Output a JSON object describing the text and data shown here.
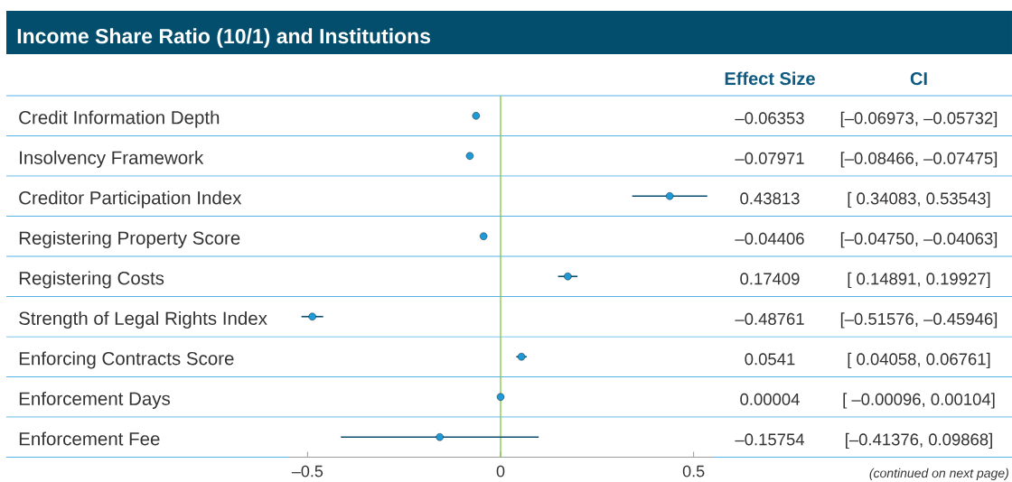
{
  "chart_data": {
    "type": "scatter",
    "orientation": "horizontal",
    "title": "Income Share Ratio (10/1) and Institutions",
    "categories": [
      "Credit Information Depth",
      "Insolvency Framework",
      "Creditor Participation Index",
      "Registering Property Score",
      "Registering Costs",
      "Strength of Legal Rights Index",
      "Enforcing Contracts Score",
      "Enforcement Days",
      "Enforcement Fee"
    ],
    "values": [
      -0.06353,
      -0.07971,
      0.43813,
      -0.04406,
      0.17409,
      -0.48761,
      0.0541,
      4e-05,
      -0.15754
    ],
    "errors": [
      null,
      null,
      [
        0.34083,
        0.53543
      ],
      null,
      [
        0.14891,
        0.19927
      ],
      [
        -0.51576,
        -0.45946
      ],
      [
        0.04058,
        0.06761
      ],
      null,
      [
        -0.41376,
        0.09868
      ]
    ],
    "value_labels": [
      "–0.06353",
      "–0.07971",
      "0.43813",
      "–0.04406",
      "0.17409",
      "–0.48761",
      "0.0541",
      "0.00004",
      "–0.15754"
    ],
    "color": "#1e9ad6",
    "marker": "circle",
    "grid": "y",
    "xlim": [
      -0.55,
      0.55
    ],
    "xticks": [
      {
        "value": -0.5,
        "label": "–0.5"
      },
      0,
      0.5
    ],
    "ref_lines": [
      {
        "axis": "x",
        "value": 0,
        "color": "#7cc242"
      }
    ],
    "annotations": [
      "Effect Size",
      "CI",
      "[–0.06973, –0.05732]",
      "[–0.08466, –0.07475]",
      "[ 0.34083, 0.53543]",
      "[–0.04750, –0.04063]",
      "[ 0.14891, 0.19927]",
      "[–0.51576, –0.45946]",
      "[ 0.04058, 0.06761]",
      "[ –0.00096, 0.00104]",
      "[–0.41376, 0.09868]",
      "(continued on next page)"
    ]
  }
}
